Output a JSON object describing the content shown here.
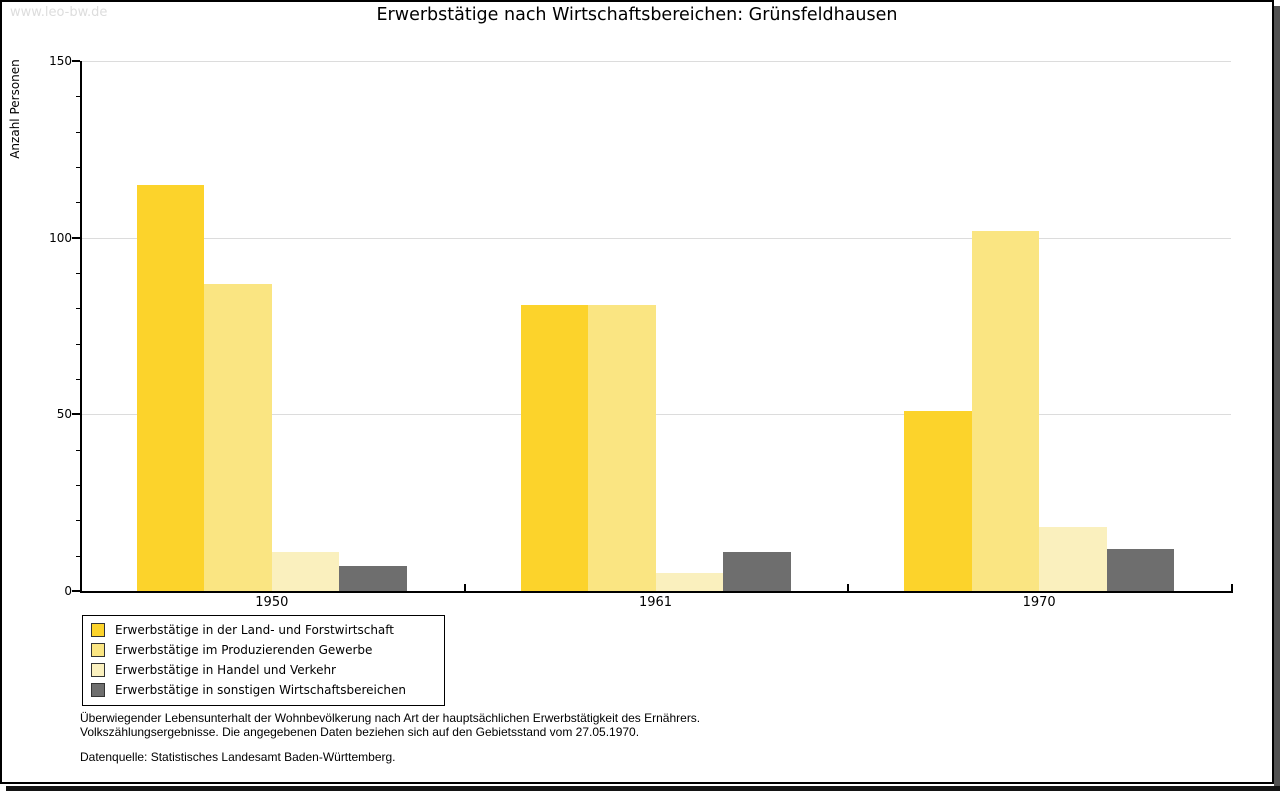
{
  "watermark": "www.leo-bw.de",
  "watermark_color": "#dddddd",
  "title": "Erwerbstätige nach Wirtschaftsbereichen: Grünsfeldhausen",
  "chart_data": {
    "type": "bar",
    "title": "Erwerbstätige nach Wirtschaftsbereichen: Grünsfeldhausen",
    "xlabel": "",
    "ylabel": "Anzahl Personen",
    "categories": [
      "1950",
      "1961",
      "1970"
    ],
    "series": [
      {
        "name": "Erwerbstätige in der Land- und Forstwirtschaft",
        "color": "#FCD32B",
        "values": [
          115,
          81,
          51
        ]
      },
      {
        "name": "Erwerbstätige im Produzierenden Gewerbe",
        "color": "#FAE582",
        "values": [
          87,
          81,
          102
        ]
      },
      {
        "name": "Erwerbstätige in Handel und Verkehr",
        "color": "#FAF0BE",
        "values": [
          11,
          5,
          18
        ]
      },
      {
        "name": "Erwerbstätige in sonstigen Wirtschaftsbereichen",
        "color": "#6E6E6E",
        "values": [
          7,
          11,
          12
        ]
      }
    ],
    "ylim": [
      0,
      150
    ],
    "yticks": [
      0,
      50,
      100,
      150
    ],
    "minor_tick_step": 10,
    "grid": true,
    "grid_color": "#dcdcdc",
    "axis_color": "#000000",
    "legend_position": "bottom-left"
  },
  "footnotes": {
    "line1": "Überwiegender Lebensunterhalt der Wohnbevölkerung nach Art der hauptsächlichen Erwerbstätigkeit des Ernährers.",
    "line2": "Volkszählungsergebnisse. Die angegebenen Daten beziehen sich auf den Gebietsstand vom 27.05.1970.",
    "source": "Datenquelle: Statistisches Landesamt Baden-Württemberg."
  }
}
